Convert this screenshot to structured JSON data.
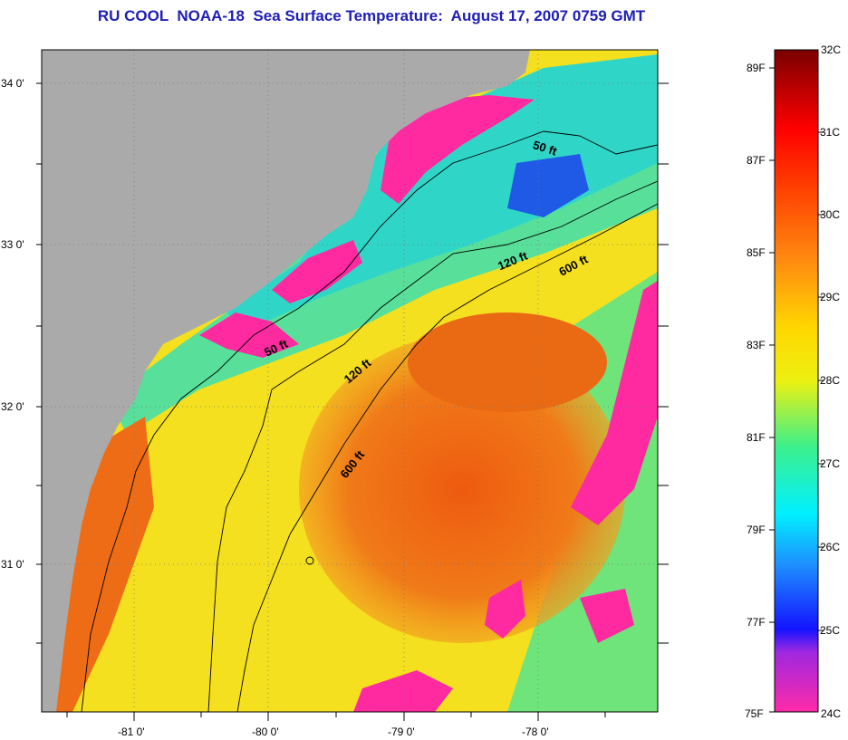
{
  "title": "RU COOL  NOAA-18  Sea Surface Temperature:  August 17, 2007 0759 GMT",
  "map": {
    "lat_labels": [
      "34 0'",
      "33 0'",
      "32 0'",
      "31 0'"
    ],
    "lon_labels": [
      "-81 0'",
      "-80 0'",
      "-79 0'",
      "-78 0'"
    ],
    "contours": {
      "a": "50 ft",
      "b": "120 ft",
      "c": "600 ft",
      "d": "50 ft",
      "e": "120 ft",
      "f": "600 ft"
    },
    "colors": {
      "land": "#aaaaaa",
      "cloud": "#ff2aa0",
      "warm": "#ee5a10",
      "mid": "#f6e81a",
      "cool": "#2fd6c8",
      "cold": "#1e5ae6"
    }
  },
  "colorbar": {
    "celsius": [
      "32C",
      "31C",
      "30C",
      "29C",
      "28C",
      "27C",
      "26C",
      "25C",
      "24C"
    ],
    "fahrenheit": [
      "89F",
      "87F",
      "85F",
      "83F",
      "81F",
      "79F",
      "77F",
      "75F"
    ]
  }
}
